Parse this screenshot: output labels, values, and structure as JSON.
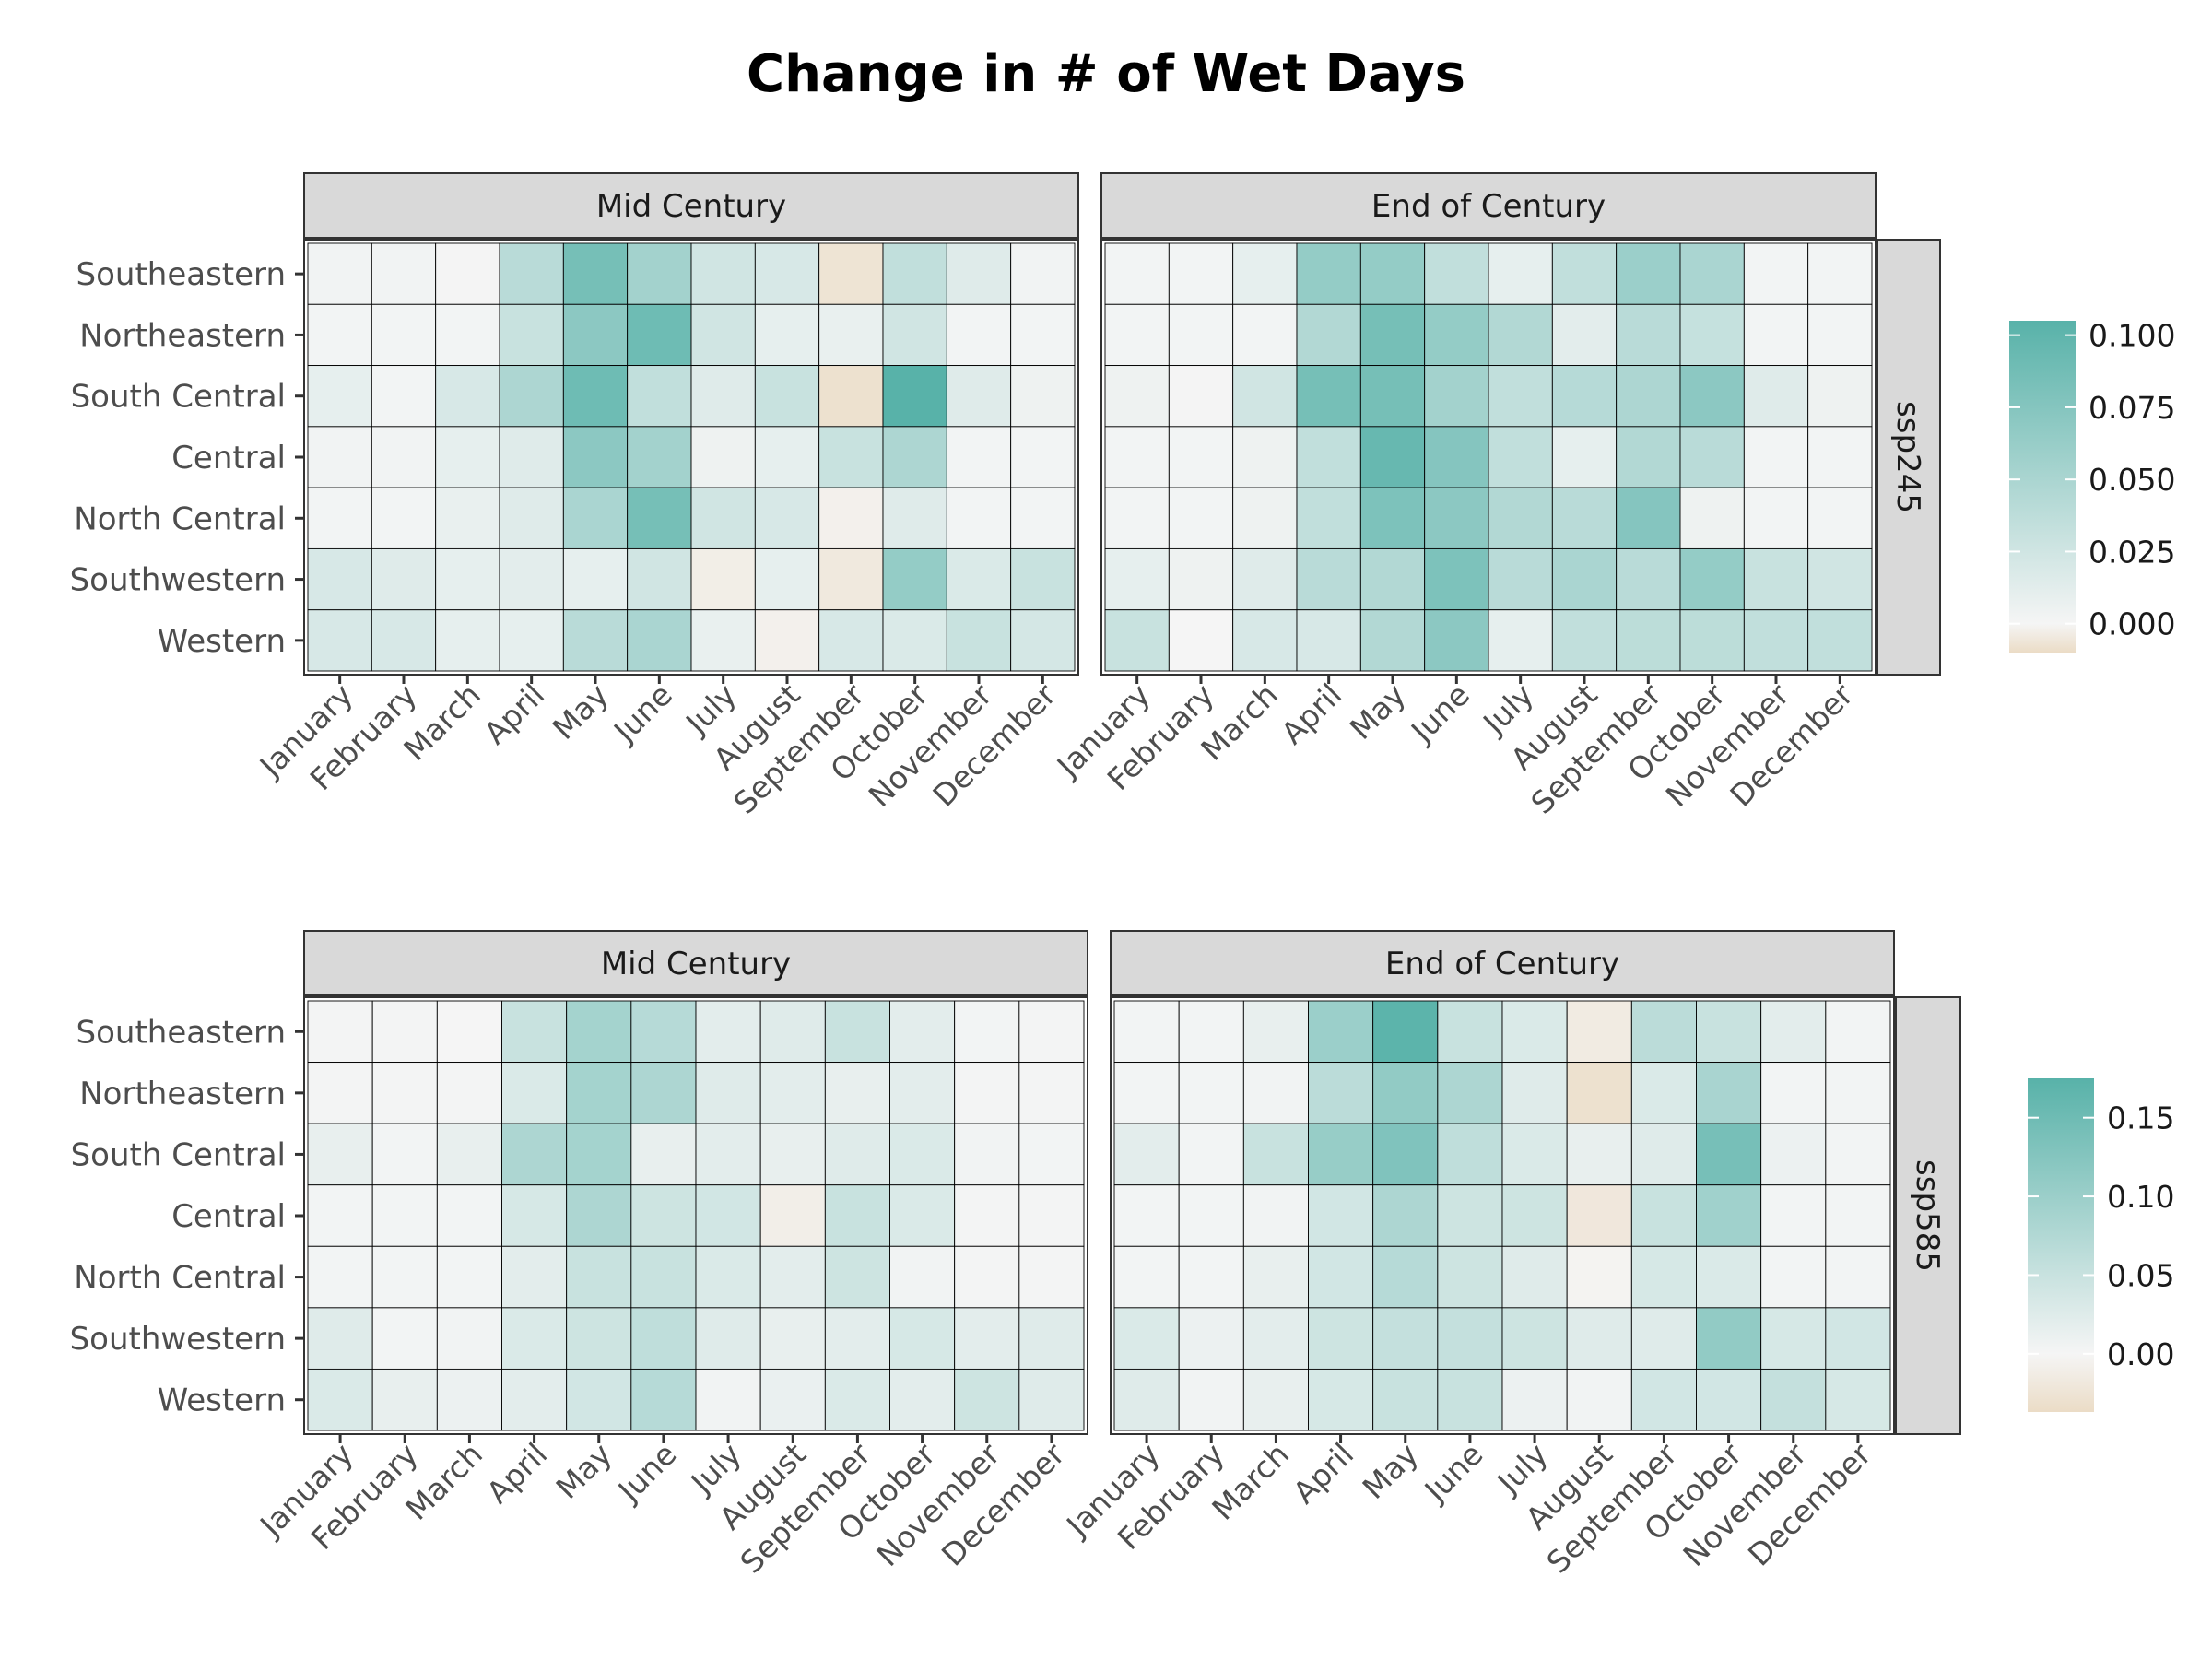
{
  "title": "Change in # of Wet Days",
  "colors": {
    "low": "#EBDCC6",
    "mid": "#F5F5F5",
    "high": "#58B2A9",
    "strip_fill": "#D9D9D9",
    "grid_line": "#000000",
    "axis_text": "#4D4D4D"
  },
  "chart_data": [
    {
      "type": "heatmap",
      "scenario": "ssp245",
      "legend": {
        "ticks": [
          0.1,
          0.075,
          0.05,
          0.025,
          0.0
        ],
        "tick_labels": [
          "0.100",
          "0.075",
          "0.050",
          "0.025",
          "0.000"
        ],
        "range": [
          -0.01,
          0.105
        ]
      },
      "categories_y": [
        "Southeastern",
        "Northeastern",
        "South Central",
        "Central",
        "North Central",
        "Southwestern",
        "Western"
      ],
      "categories_x": [
        "January",
        "February",
        "March",
        "April",
        "May",
        "June",
        "July",
        "August",
        "September",
        "October",
        "November",
        "December"
      ],
      "facets": [
        {
          "label": "Mid Century",
          "values": [
            [
              0.003,
              0.003,
              0.001,
              0.04,
              0.085,
              0.055,
              0.025,
              0.02,
              -0.007,
              0.035,
              0.015,
              0.003
            ],
            [
              0.002,
              0.002,
              0.002,
              0.03,
              0.07,
              0.09,
              0.025,
              0.01,
              0.008,
              0.025,
              0.002,
              0.002
            ],
            [
              0.01,
              0.002,
              0.02,
              0.048,
              0.09,
              0.035,
              0.015,
              0.03,
              -0.008,
              0.105,
              0.015,
              0.005
            ],
            [
              0.003,
              0.003,
              0.01,
              0.015,
              0.07,
              0.055,
              0.005,
              0.01,
              0.03,
              0.048,
              0.002,
              0.002
            ],
            [
              0.002,
              0.002,
              0.008,
              0.015,
              0.05,
              0.085,
              0.025,
              0.02,
              -0.002,
              0.015,
              0.002,
              0.002
            ],
            [
              0.02,
              0.015,
              0.01,
              0.012,
              0.01,
              0.025,
              -0.003,
              0.01,
              -0.005,
              0.065,
              0.018,
              0.03
            ],
            [
              0.02,
              0.02,
              0.01,
              0.01,
              0.04,
              0.05,
              0.008,
              -0.002,
              0.02,
              0.018,
              0.03,
              0.022
            ]
          ]
        },
        {
          "label": "End of Century",
          "values": [
            [
              0.002,
              0.002,
              0.01,
              0.065,
              0.065,
              0.035,
              0.01,
              0.035,
              0.06,
              0.05,
              0.002,
              0.002
            ],
            [
              0.002,
              0.002,
              0.002,
              0.045,
              0.085,
              0.065,
              0.045,
              0.012,
              0.04,
              0.032,
              0.002,
              0.002
            ],
            [
              0.005,
              0.001,
              0.025,
              0.085,
              0.085,
              0.055,
              0.035,
              0.042,
              0.048,
              0.07,
              0.015,
              0.005
            ],
            [
              0.002,
              0.002,
              0.005,
              0.035,
              0.095,
              0.075,
              0.035,
              0.01,
              0.045,
              0.04,
              0.002,
              0.002
            ],
            [
              0.002,
              0.002,
              0.005,
              0.035,
              0.08,
              0.07,
              0.045,
              0.04,
              0.075,
              0.005,
              0.002,
              0.002
            ],
            [
              0.01,
              0.005,
              0.015,
              0.04,
              0.045,
              0.08,
              0.04,
              0.05,
              0.04,
              0.065,
              0.03,
              0.025
            ],
            [
              0.03,
              0.0,
              0.02,
              0.02,
              0.045,
              0.07,
              0.01,
              0.035,
              0.038,
              0.038,
              0.035,
              0.035
            ]
          ]
        }
      ]
    },
    {
      "type": "heatmap",
      "scenario": "ssp585",
      "legend": {
        "ticks": [
          0.15,
          0.1,
          0.05,
          0.0
        ],
        "tick_labels": [
          "0.15",
          "0.10",
          "0.05",
          "0.00"
        ],
        "range": [
          -0.037,
          0.175
        ]
      },
      "categories_y": [
        "Southeastern",
        "Northeastern",
        "South Central",
        "Central",
        "North Central",
        "Southwestern",
        "Western"
      ],
      "categories_x": [
        "January",
        "February",
        "March",
        "April",
        "May",
        "June",
        "July",
        "August",
        "September",
        "October",
        "November",
        "December"
      ],
      "facets": [
        {
          "label": "Mid Century",
          "values": [
            [
              0.002,
              0.002,
              0.0,
              0.05,
              0.09,
              0.07,
              0.02,
              0.025,
              0.05,
              0.02,
              0.003,
              0.002
            ],
            [
              0.002,
              0.002,
              0.002,
              0.03,
              0.09,
              0.08,
              0.025,
              0.02,
              0.015,
              0.02,
              0.002,
              0.002
            ],
            [
              0.015,
              0.003,
              0.015,
              0.08,
              0.09,
              0.015,
              0.02,
              0.015,
              0.025,
              0.03,
              0.005,
              0.003
            ],
            [
              0.003,
              0.003,
              0.003,
              0.035,
              0.08,
              0.045,
              0.04,
              -0.01,
              0.05,
              0.03,
              0.002,
              0.002
            ],
            [
              0.003,
              0.003,
              0.003,
              0.02,
              0.05,
              0.05,
              0.03,
              0.02,
              0.045,
              0.005,
              0.002,
              0.002
            ],
            [
              0.025,
              0.003,
              0.005,
              0.03,
              0.045,
              0.06,
              0.025,
              0.015,
              0.02,
              0.035,
              0.02,
              0.025
            ],
            [
              0.03,
              0.015,
              0.01,
              0.02,
              0.04,
              0.07,
              0.005,
              0.012,
              0.03,
              0.02,
              0.045,
              0.025
            ]
          ]
        },
        {
          "label": "End of Century",
          "values": [
            [
              0.003,
              0.003,
              0.015,
              0.1,
              0.17,
              0.05,
              0.03,
              -0.015,
              0.065,
              0.05,
              0.02,
              0.003
            ],
            [
              0.003,
              0.003,
              0.005,
              0.065,
              0.11,
              0.08,
              0.025,
              -0.03,
              0.03,
              0.085,
              0.003,
              0.003
            ],
            [
              0.02,
              0.003,
              0.05,
              0.105,
              0.13,
              0.06,
              0.03,
              0.015,
              0.025,
              0.14,
              0.01,
              0.003
            ],
            [
              0.003,
              0.003,
              0.005,
              0.04,
              0.08,
              0.045,
              0.045,
              -0.02,
              0.05,
              0.095,
              0.003,
              0.003
            ],
            [
              0.003,
              0.003,
              0.015,
              0.04,
              0.07,
              0.045,
              0.025,
              -0.003,
              0.035,
              0.03,
              0.003,
              0.003
            ],
            [
              0.03,
              0.01,
              0.02,
              0.045,
              0.055,
              0.055,
              0.045,
              0.025,
              0.025,
              0.11,
              0.035,
              0.04
            ],
            [
              0.025,
              0.005,
              0.015,
              0.035,
              0.05,
              0.05,
              0.01,
              0.005,
              0.04,
              0.04,
              0.055,
              0.035
            ]
          ]
        }
      ]
    }
  ]
}
